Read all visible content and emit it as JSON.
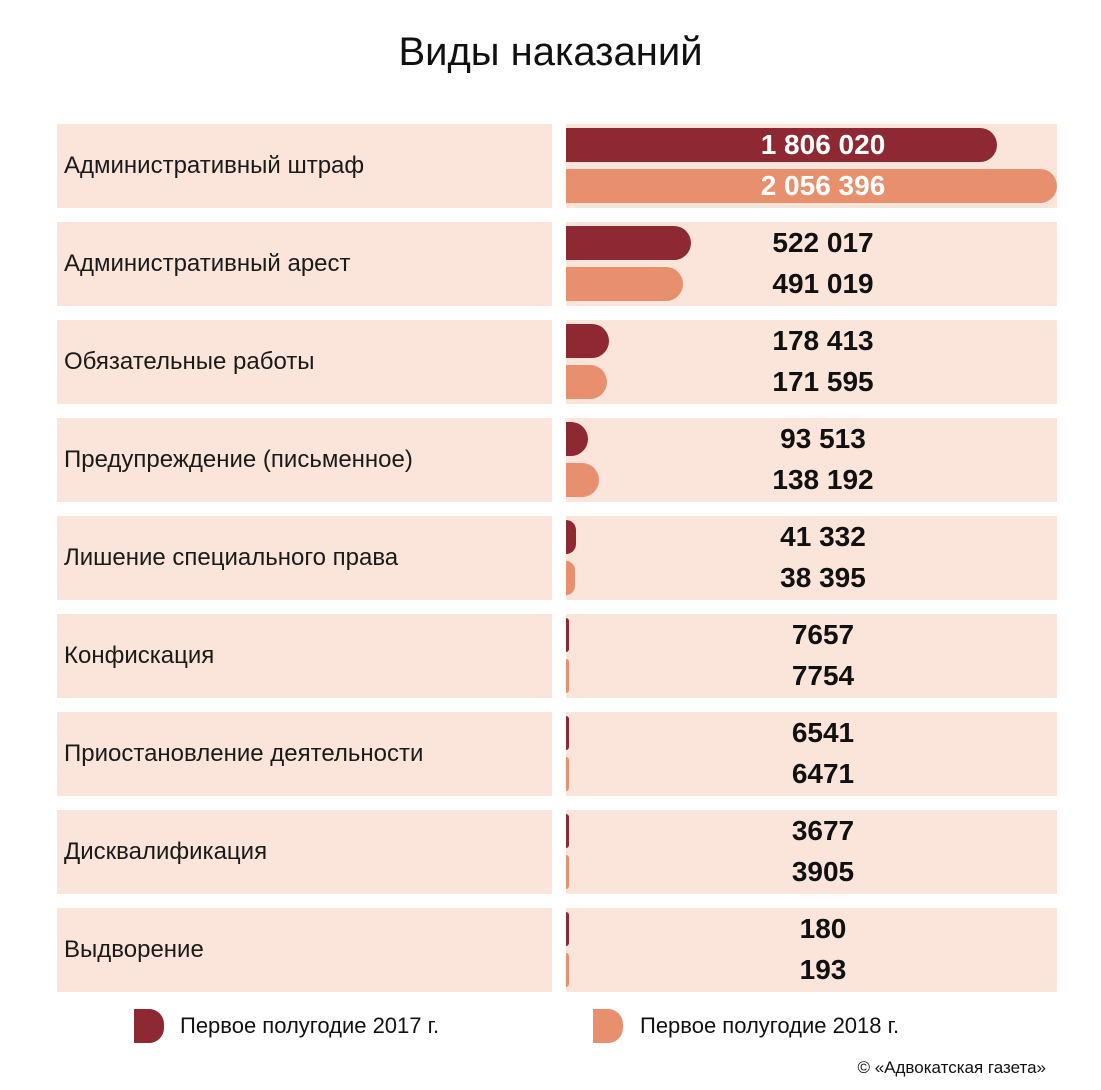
{
  "title": "Виды наказаний",
  "chart_data": {
    "type": "bar",
    "orientation": "horizontal",
    "title": "Виды наказаний",
    "categories": [
      "Административный штраф",
      "Административный арест",
      "Обязательные работы",
      "Предупреждение (письменное)",
      "Лишение специального права",
      "Конфискация",
      "Приостановление деятельности",
      "Дисквалификация",
      "Выдворение"
    ],
    "series": [
      {
        "name": "Первое полугодие 2017 г.",
        "color": "#8e2832",
        "values": [
          1806020,
          522017,
          178413,
          93513,
          41332,
          7657,
          6541,
          3677,
          180
        ],
        "labels": [
          "1 806 020",
          "522 017",
          "178 413",
          "93 513",
          "41 332",
          "7657",
          "6541",
          "3677",
          "180"
        ]
      },
      {
        "name": "Первое полугодие 2018 г.",
        "color": "#e88f6e",
        "values": [
          2056396,
          491019,
          171595,
          138192,
          38395,
          7754,
          6471,
          3905,
          193
        ],
        "labels": [
          "2 056 396",
          "491 019",
          "171 595",
          "138 192",
          "38 395",
          "7754",
          "6471",
          "3905",
          "193"
        ]
      }
    ],
    "legend_position": "bottom",
    "grid": false
  },
  "legend": {
    "item_2017": "Первое полугодие 2017 г.",
    "item_2018": "Первое полугодие 2018 г."
  },
  "source": "© «Адвокатская газета»",
  "colors": {
    "row_background": "#fbe5da",
    "series_2017": "#8e2832",
    "series_2018": "#e88f6e"
  }
}
